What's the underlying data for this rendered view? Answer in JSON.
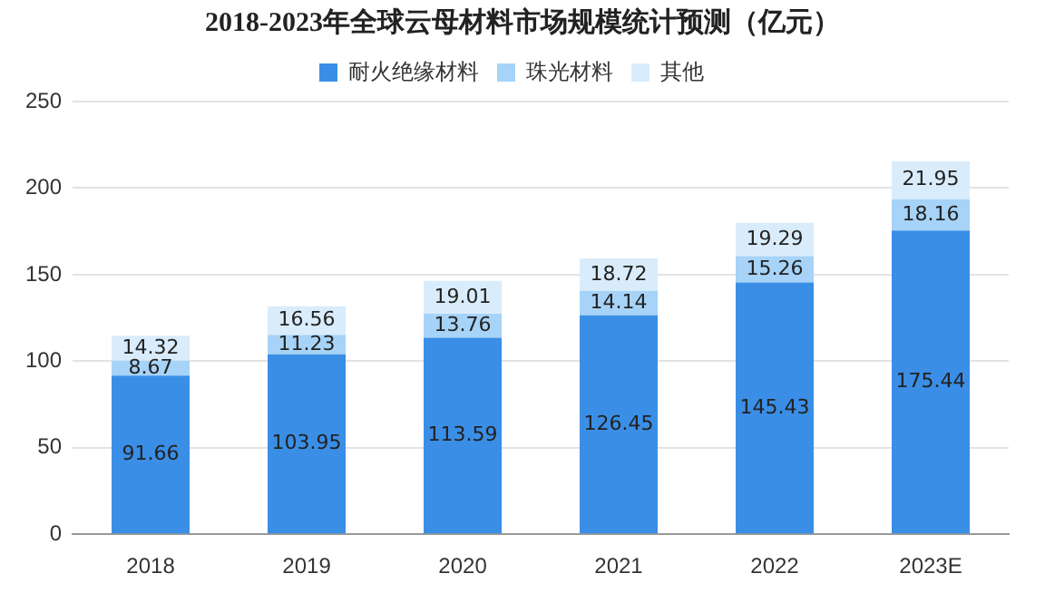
{
  "chart_data": {
    "type": "bar",
    "title": "2018-2023年全球云母材料市场规模统计预测（亿元）",
    "categories": [
      "2018",
      "2019",
      "2020",
      "2021",
      "2022",
      "2023E"
    ],
    "series": [
      {
        "name": "耐火绝缘材料",
        "color": "#3a8ee6",
        "values": [
          91.66,
          103.95,
          113.59,
          126.45,
          145.43,
          175.44
        ]
      },
      {
        "name": "珠光材料",
        "color": "#a6d3f7",
        "values": [
          8.67,
          11.23,
          13.76,
          14.14,
          15.26,
          18.16
        ]
      },
      {
        "name": "其他",
        "color": "#d9ecfb",
        "values": [
          14.32,
          16.56,
          19.01,
          18.72,
          19.29,
          21.95
        ]
      }
    ],
    "stacked": true,
    "data_labels": true,
    "ylim": [
      0,
      250
    ],
    "yticks": [
      0,
      50,
      100,
      150,
      200,
      250
    ],
    "grid": "y",
    "legend": "top"
  }
}
